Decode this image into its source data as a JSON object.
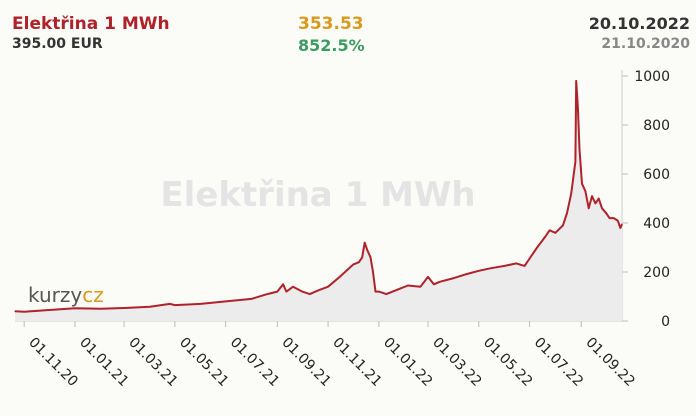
{
  "header": {
    "title": "Elektřina 1 MWh",
    "price": "395.00 EUR",
    "value_then": "353.53",
    "change": "852.5%",
    "date_now": "20.10.2022",
    "date_then": "21.10.2020"
  },
  "watermark": "Elektřina 1 MWh",
  "logo": {
    "part1": "kurzy",
    "part2": "cz"
  },
  "colors": {
    "line": "#b0222a",
    "area": "#e8e8e8",
    "accent_gold": "#d89a1c",
    "accent_green": "#3b9b61"
  },
  "chart_data": {
    "type": "area",
    "title": "Elektřina 1 MWh",
    "xlabel": "",
    "ylabel": "",
    "ylim": [
      0,
      1000
    ],
    "y_ticks": [
      "0",
      "200",
      "400",
      "600",
      "800",
      "1000"
    ],
    "x_ticks": [
      "01.11.20",
      "01.01.21",
      "01.03.21",
      "01.05.21",
      "01.07.21",
      "01.09.21",
      "01.11.21",
      "01.01.22",
      "01.03.22",
      "01.05.22",
      "01.07.22",
      "01.09.22"
    ],
    "grid": true,
    "series": [
      {
        "name": "Elektřina 1 MWh",
        "points": [
          [
            "2020-10-21",
            40
          ],
          [
            "2020-11-01",
            38
          ],
          [
            "2020-12-01",
            45
          ],
          [
            "2021-01-01",
            52
          ],
          [
            "2021-02-01",
            50
          ],
          [
            "2021-03-01",
            53
          ],
          [
            "2021-04-01",
            58
          ],
          [
            "2021-04-25",
            70
          ],
          [
            "2021-05-01",
            65
          ],
          [
            "2021-06-01",
            70
          ],
          [
            "2021-07-01",
            80
          ],
          [
            "2021-08-01",
            90
          ],
          [
            "2021-08-20",
            110
          ],
          [
            "2021-09-01",
            120
          ],
          [
            "2021-09-08",
            150
          ],
          [
            "2021-09-12",
            120
          ],
          [
            "2021-09-20",
            140
          ],
          [
            "2021-10-01",
            120
          ],
          [
            "2021-10-10",
            110
          ],
          [
            "2021-10-20",
            125
          ],
          [
            "2021-11-01",
            140
          ],
          [
            "2021-11-15",
            180
          ],
          [
            "2021-12-01",
            230
          ],
          [
            "2021-12-08",
            240
          ],
          [
            "2021-12-12",
            260
          ],
          [
            "2021-12-15",
            320
          ],
          [
            "2021-12-18",
            290
          ],
          [
            "2021-12-22",
            260
          ],
          [
            "2021-12-25",
            200
          ],
          [
            "2021-12-28",
            120
          ],
          [
            "2022-01-01",
            120
          ],
          [
            "2022-01-10",
            110
          ],
          [
            "2022-01-25",
            130
          ],
          [
            "2022-02-05",
            145
          ],
          [
            "2022-02-20",
            140
          ],
          [
            "2022-03-01",
            180
          ],
          [
            "2022-03-08",
            150
          ],
          [
            "2022-03-15",
            160
          ],
          [
            "2022-04-01",
            175
          ],
          [
            "2022-04-15",
            190
          ],
          [
            "2022-05-01",
            205
          ],
          [
            "2022-05-15",
            215
          ],
          [
            "2022-06-01",
            225
          ],
          [
            "2022-06-15",
            235
          ],
          [
            "2022-06-25",
            225
          ],
          [
            "2022-07-01",
            255
          ],
          [
            "2022-07-10",
            300
          ],
          [
            "2022-07-20",
            345
          ],
          [
            "2022-07-25",
            370
          ],
          [
            "2022-08-01",
            360
          ],
          [
            "2022-08-10",
            390
          ],
          [
            "2022-08-15",
            440
          ],
          [
            "2022-08-20",
            520
          ],
          [
            "2022-08-25",
            650
          ],
          [
            "2022-08-26",
            980
          ],
          [
            "2022-08-28",
            870
          ],
          [
            "2022-08-30",
            700
          ],
          [
            "2022-09-02",
            560
          ],
          [
            "2022-09-06",
            530
          ],
          [
            "2022-09-10",
            460
          ],
          [
            "2022-09-14",
            510
          ],
          [
            "2022-09-18",
            480
          ],
          [
            "2022-09-22",
            500
          ],
          [
            "2022-09-26",
            460
          ],
          [
            "2022-10-01",
            440
          ],
          [
            "2022-10-05",
            420
          ],
          [
            "2022-10-10",
            420
          ],
          [
            "2022-10-15",
            410
          ],
          [
            "2022-10-18",
            380
          ],
          [
            "2022-10-20",
            395
          ]
        ]
      }
    ]
  }
}
